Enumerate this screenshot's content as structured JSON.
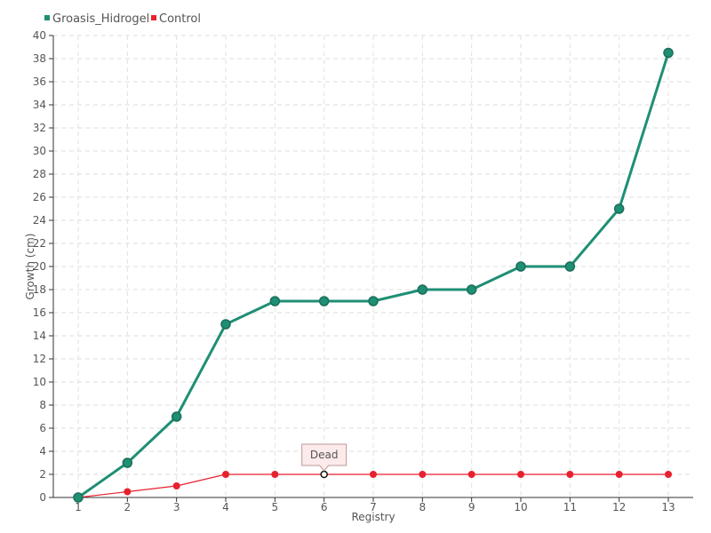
{
  "chart_data": {
    "type": "line",
    "xlabel": "Registry",
    "ylabel": "Growth (cm)",
    "categories": [
      "1",
      "2",
      "3",
      "4",
      "5",
      "6",
      "7",
      "8",
      "9",
      "10",
      "11",
      "12",
      "13"
    ],
    "ylim": [
      0,
      40
    ],
    "ytick_step": 2,
    "grid": true,
    "legend_position": "top-left",
    "series": [
      {
        "name": "Groasis_Hidrogel",
        "color": "#1f8f74",
        "values": [
          0,
          3,
          7,
          15,
          17,
          17,
          17,
          18,
          18,
          20,
          20,
          25,
          38.5
        ]
      },
      {
        "name": "Control",
        "color": "#e8212f",
        "values": [
          0,
          0.5,
          1,
          2,
          2,
          2,
          2,
          2,
          2,
          2,
          2,
          2,
          2
        ]
      }
    ],
    "annotations": [
      {
        "text": "Dead",
        "series": "Control",
        "category": "6"
      }
    ]
  }
}
